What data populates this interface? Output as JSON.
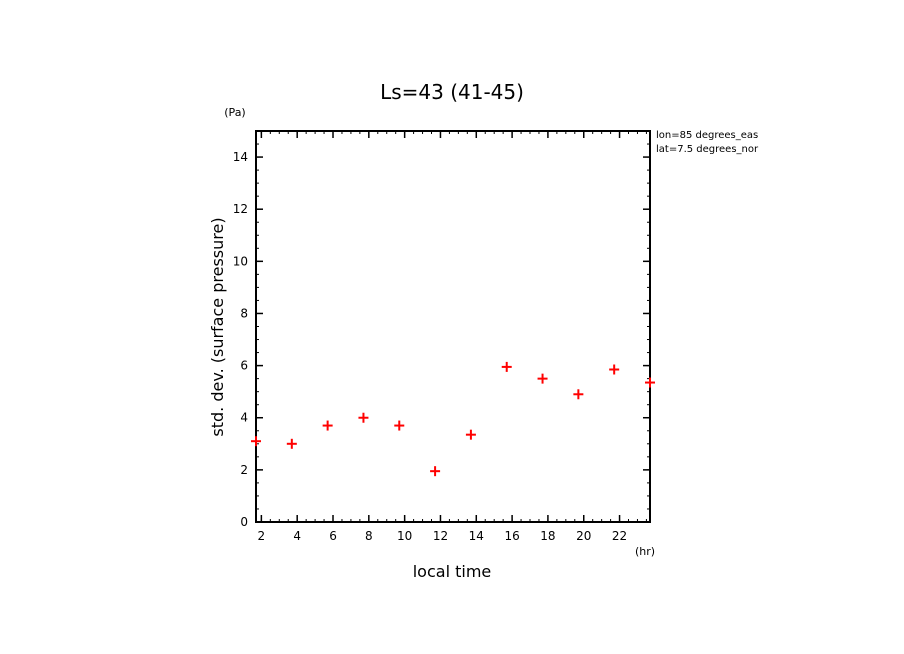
{
  "chart_data": {
    "type": "scatter",
    "title": "Ls=43 (41-45)",
    "xlabel": "local time",
    "ylabel": "std. dev. (surface pressure)",
    "x_unit": "(hr)",
    "y_unit": "(Pa)",
    "xlim": [
      1.7,
      23.7
    ],
    "ylim": [
      0,
      15
    ],
    "x_ticks": [
      2,
      4,
      6,
      8,
      10,
      12,
      14,
      16,
      18,
      20,
      22
    ],
    "y_ticks": [
      0,
      2,
      4,
      6,
      8,
      10,
      12,
      14
    ],
    "grid": false,
    "annotations": [
      "lon=85 degrees_eas",
      "lat=7.5 degrees_nor"
    ],
    "series": [
      {
        "color": "#ff0000",
        "marker": "plus",
        "x": [
          1.7,
          3.7,
          5.7,
          7.7,
          9.7,
          11.7,
          13.7,
          15.7,
          17.7,
          19.7,
          21.7,
          23.7
        ],
        "y": [
          3.1,
          3.0,
          3.7,
          4.0,
          3.7,
          1.95,
          3.35,
          5.95,
          5.5,
          4.9,
          5.85,
          5.35
        ]
      }
    ]
  }
}
